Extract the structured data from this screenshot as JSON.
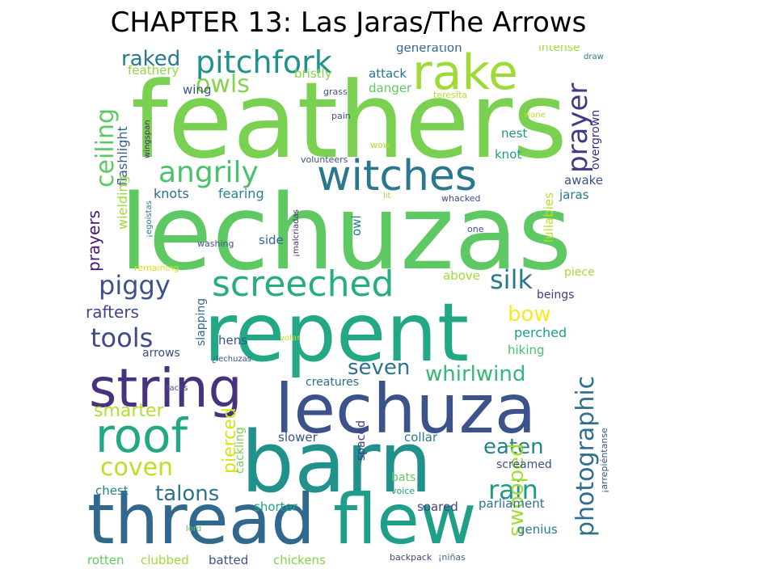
{
  "title": "CHAPTER 13: Las Jaras/The Arrows",
  "words": [
    {
      "text": "feathers",
      "color": "#7ad151"
    },
    {
      "text": "lechuzas",
      "color": "#5ec962"
    },
    {
      "text": "repent",
      "color": "#22a884"
    },
    {
      "text": "barn",
      "color": "#21918c"
    },
    {
      "text": "thread",
      "color": "#31688e"
    },
    {
      "text": "flew",
      "color": "#1f9e89"
    },
    {
      "text": "lechuza",
      "color": "#3b528b"
    },
    {
      "text": "string",
      "color": "#46327e"
    },
    {
      "text": "rake",
      "color": "#a0da39"
    },
    {
      "text": "witches",
      "color": "#2a788e"
    },
    {
      "text": "roof",
      "color": "#22a884"
    },
    {
      "text": "screeched",
      "color": "#27ad81"
    },
    {
      "text": "pitchfork",
      "color": "#21918c"
    },
    {
      "text": "photographic",
      "color": "#2e6e8e"
    },
    {
      "text": "prayer",
      "color": "#443983"
    },
    {
      "text": "ceiling",
      "color": "#5ec962"
    },
    {
      "text": "angrily",
      "color": "#4ac16d"
    },
    {
      "text": "owls",
      "color": "#84d44b"
    },
    {
      "text": "piggy",
      "color": "#3b528b"
    },
    {
      "text": "silk",
      "color": "#2a788e"
    },
    {
      "text": "tools",
      "color": "#3e4a89"
    },
    {
      "text": "coven",
      "color": "#bddf26"
    },
    {
      "text": "whirlwind",
      "color": "#35b779"
    },
    {
      "text": "seven",
      "color": "#2c728e"
    },
    {
      "text": "rain",
      "color": "#1f9a8a"
    },
    {
      "text": "eaten",
      "color": "#26828e"
    },
    {
      "text": "talons",
      "color": "#2c728e"
    },
    {
      "text": "swooped",
      "color": "#a5db36"
    },
    {
      "text": "bow",
      "color": "#fde725"
    },
    {
      "text": "smarter",
      "color": "#b5de2b"
    },
    {
      "text": "pierced",
      "color": "#d8e219"
    },
    {
      "text": "raked",
      "color": "#2a788e"
    },
    {
      "text": "rafters",
      "color": "#404688"
    },
    {
      "text": "prayers",
      "color": "#48186a"
    },
    {
      "text": "flashlight",
      "color": "#35608d"
    },
    {
      "text": "wielding",
      "color": "#9fda3a"
    },
    {
      "text": "knots",
      "color": "#2e6e8e"
    },
    {
      "text": "fearing",
      "color": "#26828e"
    },
    {
      "text": "feathery",
      "color": "#90d743"
    },
    {
      "text": "wing",
      "color": "#3b528b"
    },
    {
      "text": "bristly",
      "color": "#86d549"
    },
    {
      "text": "attack",
      "color": "#2c728e"
    },
    {
      "text": "danger",
      "color": "#5ec962"
    },
    {
      "text": "generation",
      "color": "#31688e"
    },
    {
      "text": "intense",
      "color": "#a2da37"
    },
    {
      "text": "overgrown",
      "color": "#482878"
    },
    {
      "text": "nest",
      "color": "#21918c"
    },
    {
      "text": "knot",
      "color": "#1f9e89"
    },
    {
      "text": "awake",
      "color": "#3b528b"
    },
    {
      "text": "jaras",
      "color": "#2a788e"
    },
    {
      "text": "lullabies",
      "color": "#bddf26"
    },
    {
      "text": "side",
      "color": "#31688e"
    },
    {
      "text": "owl",
      "color": "#2a788e"
    },
    {
      "text": "above",
      "color": "#a0da39"
    },
    {
      "text": "piece",
      "color": "#a5db36"
    },
    {
      "text": "beings",
      "color": "#433e85"
    },
    {
      "text": "perched",
      "color": "#1f9e89"
    },
    {
      "text": "hiking",
      "color": "#4ac16d"
    },
    {
      "text": "hens",
      "color": "#3b528b"
    },
    {
      "text": "slapping",
      "color": "#31688e"
    },
    {
      "text": "arrows",
      "color": "#3e4a89"
    },
    {
      "text": "creatures",
      "color": "#2c728e"
    },
    {
      "text": "cackling",
      "color": "#7ad151"
    },
    {
      "text": "slower",
      "color": "#3b528b"
    },
    {
      "text": "collar",
      "color": "#2a788e"
    },
    {
      "text": "spaced",
      "color": "#443983"
    },
    {
      "text": "screamed",
      "color": "#3b528b"
    },
    {
      "text": "chest",
      "color": "#26828e"
    },
    {
      "text": "bats",
      "color": "#5ec962"
    },
    {
      "text": "voice",
      "color": "#1f9e89"
    },
    {
      "text": "soared",
      "color": "#404688"
    },
    {
      "text": "parliament",
      "color": "#2c728e"
    },
    {
      "text": "shorter",
      "color": "#20a486"
    },
    {
      "text": "genius",
      "color": "#2a788e"
    },
    {
      "text": "rotten",
      "color": "#5ec962"
    },
    {
      "text": "clubbed",
      "color": "#a0da39"
    },
    {
      "text": "batted",
      "color": "#3b528b"
    },
    {
      "text": "chickens",
      "color": "#84d44b"
    },
    {
      "text": "backpack",
      "color": "#404688"
    },
    {
      "text": "¡niñas",
      "color": "#31688e"
    },
    {
      "text": "grass",
      "color": "#3b528b"
    },
    {
      "text": "pain",
      "color": "#3b528b"
    },
    {
      "text": "wow",
      "color": "#b5de2b"
    },
    {
      "text": "volunteers",
      "color": "#3b528b"
    },
    {
      "text": "wingspan",
      "color": "#482878"
    },
    {
      "text": "¡egoístas",
      "color": "#2a788e"
    },
    {
      "text": "washing",
      "color": "#3b528b"
    },
    {
      "text": "lit",
      "color": "#a0da39"
    },
    {
      "text": "whacked",
      "color": "#3e4a89"
    },
    {
      "text": "one",
      "color": "#3b528b"
    },
    {
      "text": "¡malcriadas",
      "color": "#482878"
    },
    {
      "text": "remaining",
      "color": "#d8e219"
    },
    {
      "text": "¿lechuzas",
      "color": "#3b528b"
    },
    {
      "text": "volar",
      "color": "#bddf26"
    },
    {
      "text": "faces",
      "color": "#3b528b"
    },
    {
      "text": "teresita",
      "color": "#b5de2b"
    },
    {
      "text": "wane",
      "color": "#bddf26"
    },
    {
      "text": "draw",
      "color": "#2a788e"
    },
    {
      "text": "¡arrepiéntanse",
      "color": "#3b528b"
    },
    {
      "text": "lord",
      "color": "#5ec962"
    }
  ]
}
